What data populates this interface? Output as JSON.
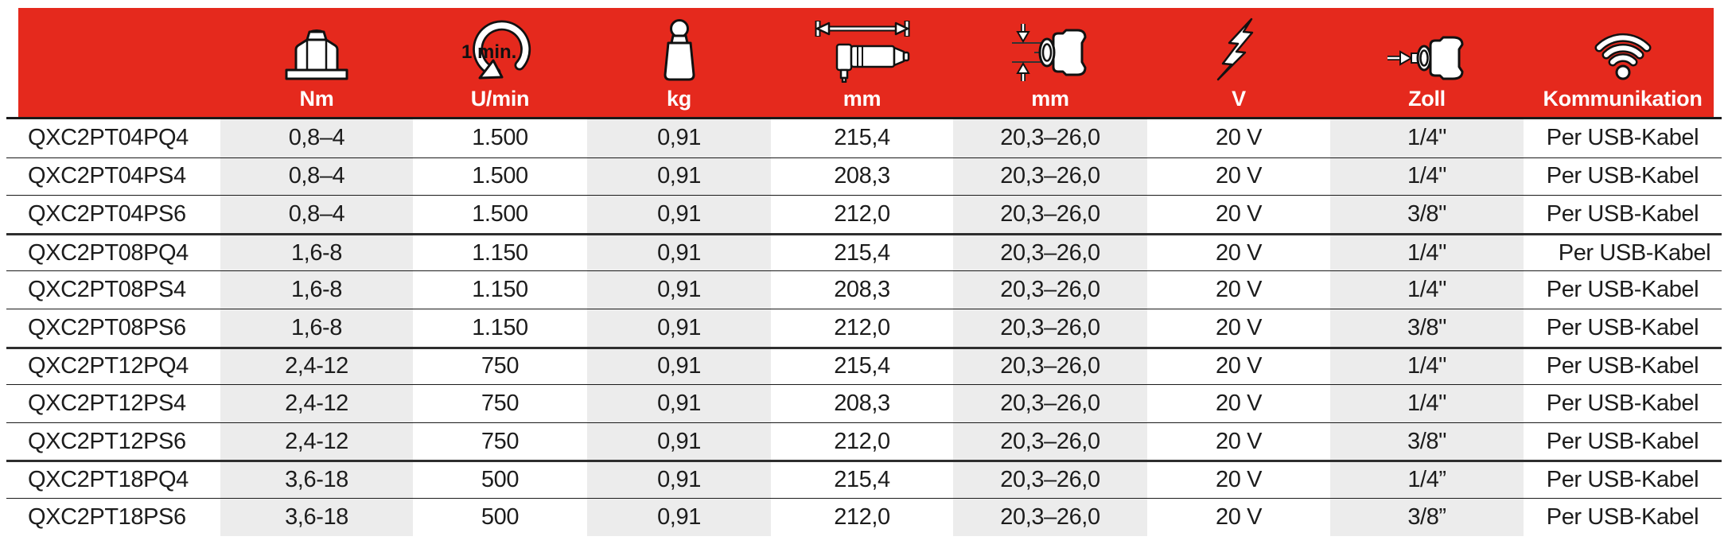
{
  "colors": {
    "header_red": "#e5291d",
    "header_text": "#ffffff",
    "shaded_column_bg": "#ececec",
    "row_line": "#1a1a1a",
    "group_line": "#2e2e2e",
    "body_text": "#1c1c1c"
  },
  "table": {
    "rotation_icon_text": "1 min.",
    "columns": [
      {
        "key": "model",
        "unit": "",
        "icon": "",
        "shaded": false
      },
      {
        "key": "torque",
        "unit": "Nm",
        "icon": "nut-icon",
        "shaded": true
      },
      {
        "key": "speed",
        "unit": "U/min",
        "icon": "rotation-icon",
        "shaded": false
      },
      {
        "key": "weight",
        "unit": "kg",
        "icon": "weight-icon",
        "shaded": true
      },
      {
        "key": "length",
        "unit": "mm",
        "icon": "length-icon",
        "shaded": false
      },
      {
        "key": "diameter",
        "unit": "mm",
        "icon": "diameter-icon",
        "shaded": true
      },
      {
        "key": "voltage",
        "unit": "V",
        "icon": "voltage-icon",
        "shaded": false
      },
      {
        "key": "drive",
        "unit": "Zoll",
        "icon": "chuck-icon",
        "shaded": true
      },
      {
        "key": "communication",
        "unit": "Kommunikation",
        "icon": "wifi-icon",
        "shaded": false
      }
    ],
    "rows": [
      {
        "group": "04",
        "model": "QXC2PT04PQ4",
        "torque": "0,8–4",
        "speed": "1.500",
        "weight": "0,91",
        "length": "215,4",
        "diameter": "20,3–26,0",
        "voltage": "20 V",
        "drive": "1/4\"",
        "communication": "Per USB-Kabel"
      },
      {
        "group": "04",
        "model": "QXC2PT04PS4",
        "torque": "0,8–4",
        "speed": "1.500",
        "weight": "0,91",
        "length": "208,3",
        "diameter": "20,3–26,0",
        "voltage": "20 V",
        "drive": "1/4\"",
        "communication": "Per USB-Kabel"
      },
      {
        "group": "04",
        "model": "QXC2PT04PS6",
        "torque": "0,8–4",
        "speed": "1.500",
        "weight": "0,91",
        "length": "212,0",
        "diameter": "20,3–26,0",
        "voltage": "20 V",
        "drive": "3/8\"",
        "communication": "Per USB-Kabel"
      },
      {
        "group": "08",
        "model": "QXC2PT08PQ4",
        "torque": "1,6-8",
        "speed": "1.150",
        "weight": "0,91",
        "length": "215,4",
        "diameter": "20,3–26,0",
        "voltage": "20 V",
        "drive": "1/4\"",
        "communication": "Per USB-Kabel",
        "communication_offset": true
      },
      {
        "group": "08",
        "model": "QXC2PT08PS4",
        "torque": "1,6-8",
        "speed": "1.150",
        "weight": "0,91",
        "length": "208,3",
        "diameter": "20,3–26,0",
        "voltage": "20 V",
        "drive": "1/4\"",
        "communication": "Per USB-Kabel"
      },
      {
        "group": "08",
        "model": "QXC2PT08PS6",
        "torque": "1,6-8",
        "speed": "1.150",
        "weight": "0,91",
        "length": "212,0",
        "diameter": "20,3–26,0",
        "voltage": "20 V",
        "drive": "3/8\"",
        "communication": "Per USB-Kabel"
      },
      {
        "group": "12",
        "model": "QXC2PT12PQ4",
        "torque": "2,4-12",
        "speed": "750",
        "weight": "0,91",
        "length": "215,4",
        "diameter": "20,3–26,0",
        "voltage": "20 V",
        "drive": "1/4\"",
        "communication": "Per USB-Kabel"
      },
      {
        "group": "12",
        "model": "QXC2PT12PS4",
        "torque": "2,4-12",
        "speed": "750",
        "weight": "0,91",
        "length": "208,3",
        "diameter": "20,3–26,0",
        "voltage": "20 V",
        "drive": "1/4\"",
        "communication": "Per USB-Kabel"
      },
      {
        "group": "12",
        "model": "QXC2PT12PS6",
        "torque": "2,4-12",
        "speed": "750",
        "weight": "0,91",
        "length": "212,0",
        "diameter": "20,3–26,0",
        "voltage": "20 V",
        "drive": "3/8\"",
        "communication": "Per USB-Kabel"
      },
      {
        "group": "18",
        "model": "QXC2PT18PQ4",
        "torque": "3,6-18",
        "speed": "500",
        "weight": "0,91",
        "length": "215,4",
        "diameter": "20,3–26,0",
        "voltage": "20 V",
        "drive": "1/4”",
        "communication": "Per USB-Kabel"
      },
      {
        "group": "18",
        "model": "QXC2PT18PS6",
        "torque": "3,6-18",
        "speed": "500",
        "weight": "0,91",
        "length": "212,0",
        "diameter": "20,3–26,0",
        "voltage": "20 V",
        "drive": "3/8”",
        "communication": "Per USB-Kabel"
      }
    ]
  }
}
